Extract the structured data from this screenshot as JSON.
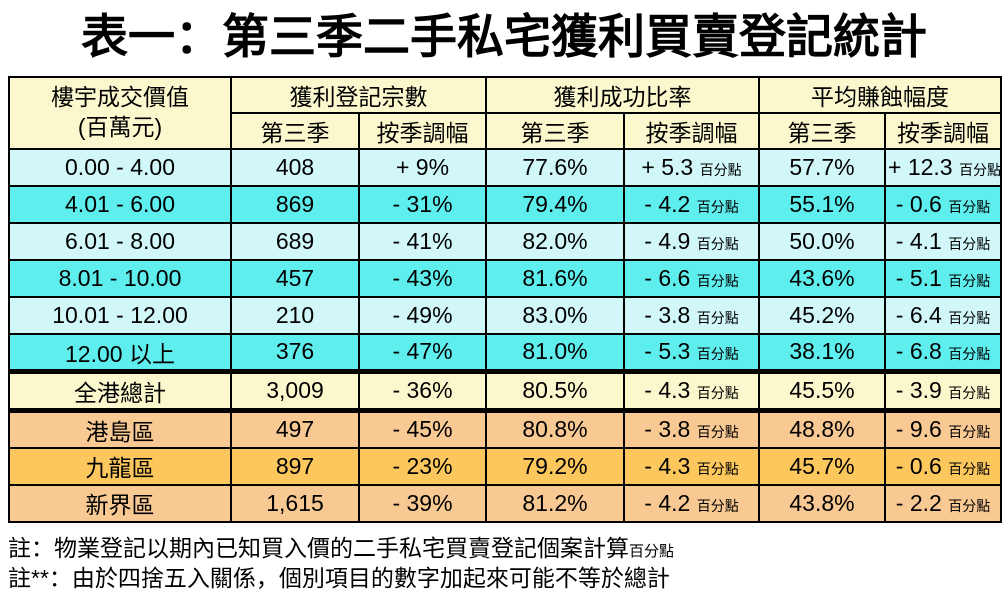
{
  "title": "表一：第三季二手私宅獲利買賣登記統計",
  "colors": {
    "yellow": "#FCF8CE",
    "cyan_light": "#D2F7F9",
    "cyan_bright": "#5FEEEE",
    "peach": "#F9C993",
    "gold": "#FCC75D",
    "border": "#000000"
  },
  "table": {
    "corner_header_line1": "樓宇成交價值",
    "corner_header_line2": "(百萬元)",
    "group_headers": [
      "獲利登記宗數",
      "獲利成功比率",
      "平均賺蝕幅度"
    ],
    "sub_headers": [
      "第三季",
      "按季調幅",
      "第三季",
      "按季調幅",
      "第三季",
      "按季調幅"
    ],
    "unit_suffix": "百分點",
    "rows": [
      {
        "label": "0.00 - 4.00",
        "band": "cyan-light",
        "cells": [
          "408",
          "+ 9%",
          "77.6%",
          "+ 5.3",
          "57.7%",
          "+ 12.3"
        ]
      },
      {
        "label": "4.01 - 6.00",
        "band": "cyan-bright",
        "cells": [
          "869",
          "- 31%",
          "79.4%",
          "- 4.2",
          "55.1%",
          "- 0.6"
        ]
      },
      {
        "label": "6.01 - 8.00",
        "band": "cyan-light",
        "cells": [
          "689",
          "- 41%",
          "82.0%",
          "- 4.9",
          "50.0%",
          "- 4.1"
        ]
      },
      {
        "label": "8.01 - 10.00",
        "band": "cyan-bright",
        "cells": [
          "457",
          "- 43%",
          "81.6%",
          "- 6.6",
          "43.6%",
          "- 5.1"
        ]
      },
      {
        "label": "10.01 - 12.00",
        "band": "cyan-light",
        "cells": [
          "210",
          "- 49%",
          "83.0%",
          "- 3.8",
          "45.2%",
          "- 6.4"
        ]
      },
      {
        "label": "12.00 以上",
        "band": "cyan-bright",
        "cells": [
          "376",
          "- 47%",
          "81.0%",
          "- 5.3",
          "38.1%",
          "- 6.8"
        ]
      },
      {
        "label": "全港總計",
        "band": "total",
        "cells": [
          "3,009",
          "- 36%",
          "80.5%",
          "- 4.3",
          "45.5%",
          "- 3.9"
        ]
      },
      {
        "label": "港島區",
        "band": "peach",
        "cells": [
          "497",
          "- 45%",
          "80.8%",
          "- 3.8",
          "48.8%",
          "- 9.6"
        ]
      },
      {
        "label": "九龍區",
        "band": "gold",
        "cells": [
          "897",
          "- 23%",
          "79.2%",
          "- 4.3",
          "45.7%",
          "- 0.6"
        ]
      },
      {
        "label": "新界區",
        "band": "peach",
        "cells": [
          "1,615",
          "- 39%",
          "81.2%",
          "- 4.2",
          "43.8%",
          "- 2.2"
        ]
      }
    ]
  },
  "notes": {
    "note1_main": "註：物業登記以期內已知買入價的二手私宅買賣登記個案計算",
    "note1_suffix": "百分點",
    "note2": "註**：由於四捨五入關係，個別項目的數字加起來可能不等於總計"
  }
}
